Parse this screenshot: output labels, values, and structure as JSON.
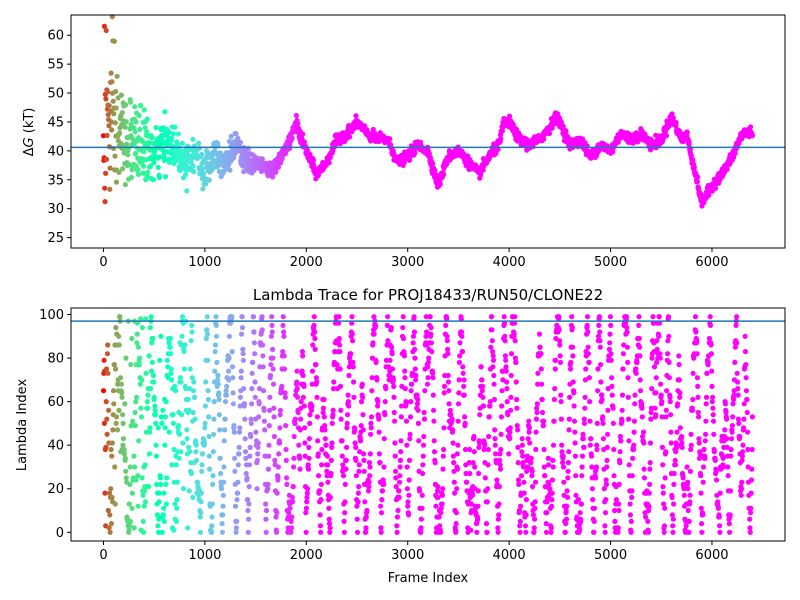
{
  "chart_data": [
    {
      "type": "scatter",
      "title": "",
      "xlabel": "",
      "ylabel_italic_part": "G",
      "ylabel_prefix": "Δ",
      "ylabel_suffix": " (kT)",
      "xlim": [
        -320,
        6720
      ],
      "ylim": [
        23.2,
        63.5
      ],
      "xticks": [
        0,
        1000,
        2000,
        3000,
        4000,
        5000,
        6000
      ],
      "yticks": [
        25,
        30,
        35,
        40,
        45,
        50,
        55,
        60
      ],
      "hline": 40.6,
      "hline_color": "#1f77b4",
      "colormap": "rainbow (reversed by frame index: early frames red, late frames violet)",
      "frame_range": [
        0,
        6400
      ],
      "series_profile": {
        "x": [
          0,
          50,
          100,
          150,
          200,
          300,
          400,
          500,
          600,
          700,
          800,
          900,
          1000,
          1100,
          1200,
          1300,
          1400,
          1500,
          1600,
          1700,
          1750,
          1850,
          1900,
          1950,
          2000,
          2100,
          2200,
          2300,
          2400,
          2500,
          2600,
          2700,
          2800,
          2900,
          3000,
          3100,
          3200,
          3300,
          3400,
          3500,
          3600,
          3700,
          3800,
          3900,
          3950,
          4000,
          4100,
          4200,
          4300,
          4400,
          4450,
          4500,
          4600,
          4700,
          4800,
          4900,
          5000,
          5100,
          5200,
          5300,
          5400,
          5500,
          5600,
          5700,
          5750,
          5800,
          5850,
          5900,
          6000,
          6100,
          6200,
          6300,
          6400
        ],
        "center": [
          46,
          45,
          44,
          43,
          42,
          41,
          41,
          39,
          41,
          41,
          38,
          40,
          36,
          40,
          38,
          41,
          38,
          38,
          37,
          37,
          39,
          42,
          45,
          42,
          40,
          36,
          38,
          42,
          43,
          45,
          43,
          42,
          42,
          38,
          39,
          41,
          40,
          34,
          39,
          40,
          38,
          36,
          39,
          41,
          45,
          45,
          42,
          41,
          42,
          44,
          46,
          45,
          41,
          42,
          39,
          41,
          40,
          43,
          42,
          43,
          41,
          42,
          46,
          42,
          43,
          39,
          35,
          31,
          34,
          36,
          39,
          43,
          43.3
        ],
        "spread": [
          18,
          16,
          13,
          10,
          8,
          6,
          5,
          4,
          4,
          3,
          3,
          3,
          3,
          3,
          3,
          2,
          2,
          1.5,
          1,
          1,
          1,
          1,
          1,
          1,
          1,
          0.8,
          0.8,
          0.8,
          0.8,
          0.8,
          0.8,
          0.8,
          0.8,
          0.8,
          0.8,
          0.8,
          0.8,
          0.8,
          0.8,
          0.8,
          0.8,
          0.8,
          0.8,
          0.8,
          0.8,
          0.8,
          0.8,
          0.8,
          0.8,
          0.8,
          0.8,
          0.8,
          0.8,
          0.8,
          0.8,
          0.8,
          0.8,
          0.8,
          0.8,
          0.8,
          0.8,
          0.8,
          0.8,
          0.8,
          0.8,
          0.8,
          0.8,
          0.8,
          0.8,
          0.8,
          0.8,
          0.8,
          0.8
        ]
      }
    },
    {
      "type": "scatter",
      "title": "Lambda Trace for PROJ18433/RUN50/CLONE22",
      "xlabel": "Frame Index",
      "ylabel": "Lambda Index",
      "xlim": [
        -320,
        6720
      ],
      "ylim": [
        -4,
        103
      ],
      "xticks": [
        0,
        1000,
        2000,
        3000,
        4000,
        5000,
        6000
      ],
      "yticks": [
        0,
        20,
        40,
        60,
        80,
        100
      ],
      "hline": 97,
      "hline_color": "#1f77b4",
      "colormap": "rainbow (reversed by frame index: early frames red, late frames violet)",
      "frame_range": [
        0,
        6400
      ],
      "value_range": [
        0,
        99
      ],
      "pattern": "random-walk sweeps across the full 0–99 lambda range"
    }
  ],
  "tick_labels_top": [
    "0",
    "1000",
    "2000",
    "3000",
    "4000",
    "5000",
    "6000"
  ],
  "ytick_labels_top": [
    "25",
    "30",
    "35",
    "40",
    "45",
    "50",
    "55",
    "60"
  ],
  "tick_labels_bottom": [
    "0",
    "1000",
    "2000",
    "3000",
    "4000",
    "5000",
    "6000"
  ],
  "ytick_labels_bottom": [
    "0",
    "20",
    "40",
    "60",
    "80",
    "100"
  ]
}
